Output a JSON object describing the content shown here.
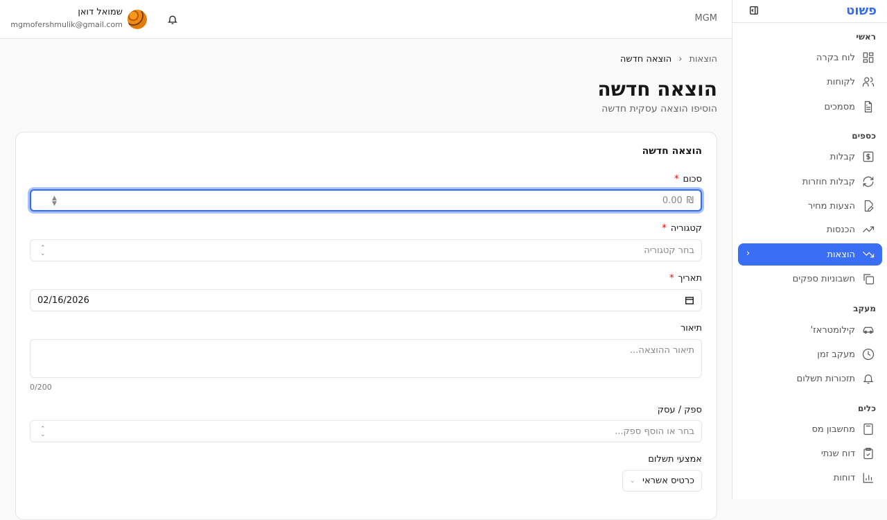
{
  "sidebar": {
    "logo": "פשוט",
    "sections": [
      {
        "title": "ראשי",
        "items": [
          {
            "label": "לוח בקרה",
            "icon": "dashboard-icon"
          },
          {
            "label": "לקוחות",
            "icon": "users-icon"
          },
          {
            "label": "מסמכים",
            "icon": "file-text-icon"
          }
        ]
      },
      {
        "title": "כספים",
        "items": [
          {
            "label": "קבלות",
            "icon": "receipt-dollar-icon"
          },
          {
            "label": "קבלות חוזרות",
            "icon": "refresh-icon"
          },
          {
            "label": "הצעות מחיר",
            "icon": "file-pen-icon"
          },
          {
            "label": "הכנסות",
            "icon": "trending-up-icon"
          },
          {
            "label": "הוצאות",
            "icon": "trending-down-icon",
            "active": true
          },
          {
            "label": "חשבוניות ספקים",
            "icon": "copy-icon"
          }
        ]
      },
      {
        "title": "מעקב",
        "items": [
          {
            "label": "קילומטראז'",
            "icon": "car-icon"
          },
          {
            "label": "מעקב זמן",
            "icon": "clock-icon"
          },
          {
            "label": "תזכורות תשלום",
            "icon": "bell-icon"
          }
        ]
      },
      {
        "title": "כלים",
        "items": [
          {
            "label": "מחשבון מס",
            "icon": "calculator-icon"
          },
          {
            "label": "דוח שנתי",
            "icon": "clipboard-check-icon"
          },
          {
            "label": "דוחות",
            "icon": "bar-chart-icon"
          }
        ]
      }
    ]
  },
  "header": {
    "brand": "MGM",
    "user_name": "שמואל דואן",
    "user_email": "mgmofershmulik@gmail.com"
  },
  "breadcrumb": {
    "parent": "הוצאות",
    "current": "הוצאה חדשה"
  },
  "page": {
    "title": "הוצאה חדשה",
    "subtitle": "הוסיפו הוצאה עסקית חדשה"
  },
  "form": {
    "card_title": "הוצאה חדשה",
    "amount": {
      "label": "סכום",
      "placeholder": "0.00",
      "currency": "₪"
    },
    "category": {
      "label": "קטגוריה",
      "placeholder": "בחר קטגוריה"
    },
    "date": {
      "label": "תאריך",
      "value": "02/16/2026"
    },
    "description": {
      "label": "תיאור",
      "placeholder": "תיאור ההוצאה...",
      "counter": "0/200"
    },
    "vendor": {
      "label": "ספק / עסק",
      "placeholder": "בחר או הוסף ספק..."
    },
    "payment": {
      "label": "אמצעי תשלום",
      "value": "כרטיס אשראי"
    },
    "required_mark": "*"
  }
}
